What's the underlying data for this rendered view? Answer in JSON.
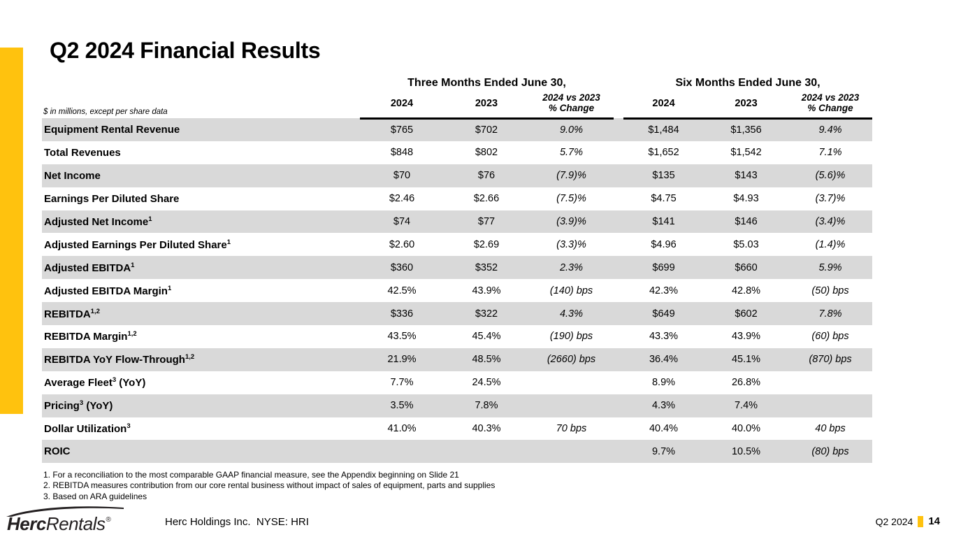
{
  "title": "Q2 2024 Financial Results",
  "colors": {
    "accent_yellow": "#FFC20E",
    "row_alt_gray": "#D9D9D9",
    "logo_dark": "#231F20"
  },
  "table": {
    "units_note": "$ in millions, except per share data",
    "groups": [
      {
        "label": "Three Months Ended June 30,"
      },
      {
        "label": "Six Months Ended June 30,"
      }
    ],
    "columns": {
      "year1": "2024",
      "year2": "2023",
      "change_line1": "2024 vs 2023",
      "change_line2": "% Change"
    },
    "rows": [
      {
        "label": "Equipment Rental Revenue",
        "sup": "",
        "suffix": "",
        "values": [
          "$765",
          "$702",
          "9.0%",
          "$1,484",
          "$1,356",
          "9.4%"
        ]
      },
      {
        "label": "Total Revenues",
        "sup": "",
        "suffix": "",
        "values": [
          "$848",
          "$802",
          "5.7%",
          "$1,652",
          "$1,542",
          "7.1%"
        ]
      },
      {
        "label": "Net Income",
        "sup": "",
        "suffix": "",
        "values": [
          "$70",
          "$76",
          "(7.9)%",
          "$135",
          "$143",
          "(5.6)%"
        ]
      },
      {
        "label": "Earnings Per Diluted Share",
        "sup": "",
        "suffix": "",
        "values": [
          "$2.46",
          "$2.66",
          "(7.5)%",
          "$4.75",
          "$4.93",
          "(3.7)%"
        ]
      },
      {
        "label": "Adjusted Net Income",
        "sup": "1",
        "suffix": "",
        "values": [
          "$74",
          "$77",
          "(3.9)%",
          "$141",
          "$146",
          "(3.4)%"
        ]
      },
      {
        "label": "Adjusted Earnings Per Diluted Share",
        "sup": "1",
        "suffix": "",
        "values": [
          "$2.60",
          "$2.69",
          "(3.3)%",
          "$4.96",
          "$5.03",
          "(1.4)%"
        ]
      },
      {
        "label": "Adjusted EBITDA",
        "sup": "1",
        "suffix": "",
        "values": [
          "$360",
          "$352",
          "2.3%",
          "$699",
          "$660",
          "5.9%"
        ]
      },
      {
        "label": "Adjusted EBITDA Margin",
        "sup": "1",
        "suffix": "",
        "values": [
          "42.5%",
          "43.9%",
          "(140) bps",
          "42.3%",
          "42.8%",
          "(50) bps"
        ]
      },
      {
        "label": "REBITDA",
        "sup": "1,2",
        "suffix": "",
        "values": [
          "$336",
          "$322",
          "4.3%",
          "$649",
          "$602",
          "7.8%"
        ]
      },
      {
        "label": "REBITDA Margin",
        "sup": "1,2",
        "suffix": "",
        "values": [
          "43.5%",
          "45.4%",
          "(190) bps",
          "43.3%",
          "43.9%",
          "(60) bps"
        ]
      },
      {
        "label": "REBITDA YoY Flow-Through",
        "sup": "1,2",
        "suffix": "",
        "values": [
          "21.9%",
          "48.5%",
          "(2660) bps",
          "36.4%",
          "45.1%",
          "(870) bps"
        ]
      },
      {
        "label": "Average Fleet",
        "sup": "3",
        "suffix": " (YoY)",
        "values": [
          "7.7%",
          "24.5%",
          "",
          "8.9%",
          "26.8%",
          ""
        ]
      },
      {
        "label": "Pricing",
        "sup": "3",
        "suffix": " (YoY)",
        "values": [
          "3.5%",
          "7.8%",
          "",
          "4.3%",
          "7.4%",
          ""
        ]
      },
      {
        "label": "Dollar Utilization",
        "sup": "3",
        "suffix": "",
        "values": [
          "41.0%",
          "40.3%",
          "70 bps",
          "40.4%",
          "40.0%",
          "40 bps"
        ]
      },
      {
        "label": "ROIC",
        "sup": "",
        "suffix": "",
        "values": [
          "",
          "",
          "",
          "9.7%",
          "10.5%",
          "(80) bps"
        ]
      }
    ]
  },
  "footnotes": [
    "1. For a reconciliation to the most comparable GAAP financial measure, see the Appendix beginning on Slide 21",
    "2. REBITDA measures contribution from our core rental business without impact of sales of equipment, parts and supplies",
    "3. Based on ARA guidelines"
  ],
  "footer": {
    "logo_herc": "Herc",
    "logo_rentals": "Rentals",
    "logo_reg": "®",
    "company": "Herc Holdings Inc.  NYSE: HRI",
    "page_label": "Q2 2024",
    "page_number": "14"
  }
}
